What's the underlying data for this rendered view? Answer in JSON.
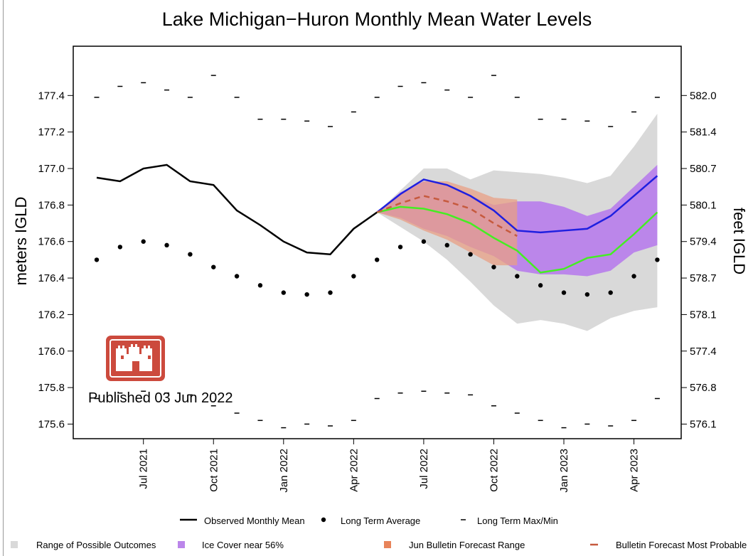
{
  "chart_data": {
    "type": "line",
    "title": "Lake Michigan−Huron Monthly Mean Water Levels",
    "ylabel": "meters IGLD",
    "ylabel_right": "feet IGLD",
    "ylim": [
      175.52,
      177.67
    ],
    "yticks": [
      175.6,
      175.8,
      176.0,
      176.2,
      176.4,
      176.6,
      176.8,
      177.0,
      177.2,
      177.4
    ],
    "ytick_labels": [
      "175.6",
      "175.8",
      "176.0",
      "176.2",
      "176.4",
      "176.6",
      "176.8",
      "177.0",
      "177.2",
      "177.4"
    ],
    "yticks_right": [
      "576.1",
      "576.8",
      "577.4",
      "578.1",
      "578.7",
      "579.4",
      "580.1",
      "580.7",
      "581.4",
      "582.0"
    ],
    "x": [
      "2021-05",
      "2021-06",
      "2021-07",
      "2021-08",
      "2021-09",
      "2021-10",
      "2021-11",
      "2021-12",
      "2022-01",
      "2022-02",
      "2022-03",
      "2022-04",
      "2022-05",
      "2022-06",
      "2022-07",
      "2022-08",
      "2022-09",
      "2022-10",
      "2022-11",
      "2022-12",
      "2023-01",
      "2023-02",
      "2023-03",
      "2023-04",
      "2023-05"
    ],
    "xtick_labels": [
      "Jul 2021",
      "Oct 2021",
      "Jan 2022",
      "Apr 2022",
      "Jul 2022",
      "Oct 2022",
      "Jan 2023",
      "Apr 2023"
    ],
    "xtick_months": [
      "2021-07",
      "2021-10",
      "2022-01",
      "2022-04",
      "2022-07",
      "2022-10",
      "2023-01",
      "2023-04"
    ],
    "series": [
      {
        "name": "Observed Monthly Mean",
        "x": [
          "2021-05",
          "2021-06",
          "2021-07",
          "2021-08",
          "2021-09",
          "2021-10",
          "2021-11",
          "2021-12",
          "2022-01",
          "2022-02",
          "2022-03",
          "2022-04",
          "2022-05"
        ],
        "values": [
          176.95,
          176.93,
          177.0,
          177.02,
          176.93,
          176.91,
          176.77,
          176.69,
          176.6,
          176.54,
          176.53,
          176.67,
          176.76
        ]
      },
      {
        "name": "Long Term Average",
        "values": [
          176.5,
          176.57,
          176.6,
          176.58,
          176.53,
          176.46,
          176.41,
          176.36,
          176.32,
          176.31,
          176.32,
          176.41,
          176.5,
          176.57,
          176.6,
          176.58,
          176.53,
          176.46,
          176.41,
          176.36,
          176.32,
          176.31,
          176.32,
          176.41,
          176.5
        ]
      },
      {
        "name": "Long Term Max/Min",
        "role": "max",
        "values": [
          177.39,
          177.45,
          177.47,
          177.43,
          177.39,
          177.51,
          177.39,
          177.27,
          177.27,
          177.26,
          177.23,
          177.31,
          177.39,
          177.45,
          177.47,
          177.43,
          177.39,
          177.51,
          177.39,
          177.27,
          177.27,
          177.26,
          177.23,
          177.31,
          177.39
        ]
      },
      {
        "name": "Long Term Max/Min",
        "role": "min",
        "values": [
          175.74,
          175.77,
          175.78,
          175.77,
          175.76,
          175.7,
          175.66,
          175.62,
          175.58,
          175.6,
          175.59,
          175.62,
          175.74,
          175.77,
          175.78,
          175.77,
          175.76,
          175.7,
          175.66,
          175.62,
          175.58,
          175.6,
          175.59,
          175.62,
          175.74
        ]
      }
    ],
    "forecast_x": [
      "2022-05",
      "2022-06",
      "2022-07",
      "2022-08",
      "2022-09",
      "2022-10",
      "2022-11",
      "2022-12",
      "2023-01",
      "2023-02",
      "2023-03",
      "2023-04",
      "2023-05"
    ],
    "range_possible": {
      "name": "Range of Possible Outcomes",
      "color": "#d9d9d9",
      "upper": [
        176.76,
        176.88,
        177.0,
        177.0,
        176.94,
        176.99,
        176.98,
        176.97,
        176.95,
        176.92,
        176.96,
        177.12,
        177.3
      ],
      "lower": [
        176.76,
        176.68,
        176.6,
        176.5,
        176.38,
        176.25,
        176.15,
        176.17,
        176.15,
        176.11,
        176.18,
        176.22,
        176.24
      ]
    },
    "ice_cover": {
      "name": "Ice Cover near 56%",
      "color": "#bb86ea",
      "upper": [
        176.76,
        176.87,
        176.93,
        176.91,
        176.85,
        176.8,
        176.82,
        176.82,
        176.79,
        176.74,
        176.78,
        176.9,
        177.02
      ],
      "lower": [
        176.76,
        176.73,
        176.67,
        176.63,
        176.57,
        176.52,
        176.44,
        176.42,
        176.42,
        176.41,
        176.44,
        176.54,
        176.58
      ]
    },
    "bulletin_range": {
      "name": "Jun Bulletin Forecast Range",
      "color": "#e89f84",
      "x": [
        "2022-05",
        "2022-06",
        "2022-07",
        "2022-08",
        "2022-09",
        "2022-10",
        "2022-11"
      ],
      "upper": [
        176.76,
        176.86,
        176.93,
        176.93,
        176.89,
        176.84,
        176.83
      ],
      "lower": [
        176.76,
        176.72,
        176.66,
        176.61,
        176.54,
        176.47,
        176.47
      ]
    },
    "bulletin_most_probable": {
      "name": "Bulletin Forecast Most Probable",
      "color": "#c65a3e",
      "x": [
        "2022-05",
        "2022-06",
        "2022-07",
        "2022-08",
        "2022-09",
        "2022-10",
        "2022-11"
      ],
      "values": [
        176.76,
        176.81,
        176.85,
        176.82,
        176.78,
        176.7,
        176.63
      ]
    },
    "blue_line": {
      "color": "#1f1fe0",
      "values": [
        176.76,
        176.86,
        176.94,
        176.91,
        176.85,
        176.77,
        176.66,
        176.65,
        176.66,
        176.67,
        176.74,
        176.85,
        176.96
      ]
    },
    "green_line": {
      "color": "#44ee22",
      "values": [
        176.76,
        176.79,
        176.78,
        176.75,
        176.7,
        176.62,
        176.55,
        176.43,
        176.45,
        176.51,
        176.53,
        176.64,
        176.76
      ]
    },
    "legend": {
      "row1": [
        "Observed Monthly Mean",
        "Long Term Average",
        "Long Term Max/Min"
      ],
      "row2": [
        "Range of Possible Outcomes",
        "Ice Cover near 56%",
        "Jun Bulletin Forecast Range",
        "Bulletin Forecast Most Probable"
      ],
      "placement": "bottom"
    },
    "annotation": "Published 03 Jun 2022",
    "grid": false
  },
  "logo": {
    "color": "#cc4a3d"
  }
}
